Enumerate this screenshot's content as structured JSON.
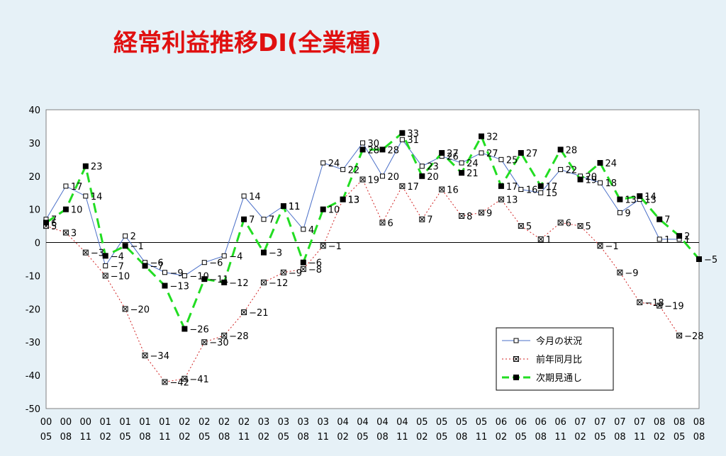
{
  "chart_data": {
    "type": "line",
    "title": "経常利益推移DI(全業種)",
    "ylim": [
      -50,
      40
    ],
    "yticks": [
      40,
      30,
      20,
      10,
      0,
      -10,
      -20,
      -30,
      -40,
      -50
    ],
    "grid": false,
    "legend_position": "bottom-right",
    "categories": [
      [
        "00",
        "05"
      ],
      [
        "00",
        "08"
      ],
      [
        "00",
        "11"
      ],
      [
        "01",
        "02"
      ],
      [
        "01",
        "05"
      ],
      [
        "01",
        "08"
      ],
      [
        "01",
        "11"
      ],
      [
        "02",
        "02"
      ],
      [
        "02",
        "05"
      ],
      [
        "02",
        "08"
      ],
      [
        "02",
        "11"
      ],
      [
        "03",
        "02"
      ],
      [
        "03",
        "05"
      ],
      [
        "03",
        "08"
      ],
      [
        "03",
        "11"
      ],
      [
        "04",
        "02"
      ],
      [
        "04",
        "05"
      ],
      [
        "04",
        "08"
      ],
      [
        "04",
        "11"
      ],
      [
        "05",
        "02"
      ],
      [
        "05",
        "05"
      ],
      [
        "05",
        "08"
      ],
      [
        "05",
        "11"
      ],
      [
        "06",
        "02"
      ],
      [
        "06",
        "05"
      ],
      [
        "06",
        "08"
      ],
      [
        "06",
        "11"
      ],
      [
        "07",
        "02"
      ],
      [
        "07",
        "05"
      ],
      [
        "07",
        "08"
      ],
      [
        "07",
        "11"
      ],
      [
        "08",
        "02"
      ],
      [
        "08",
        "05"
      ],
      [
        "08",
        "08"
      ]
    ],
    "series": [
      {
        "name": "今月の状況",
        "color": "#4a6fc8",
        "values": [
          7,
          17,
          14,
          -7,
          2,
          -6,
          -9,
          -10,
          -6,
          -4,
          14,
          7,
          11,
          4,
          24,
          22,
          30,
          20,
          31,
          23,
          26,
          24,
          27,
          25,
          16,
          15,
          22,
          20,
          18,
          9,
          13,
          1,
          1,
          null
        ]
      },
      {
        "name": "前年同月比",
        "color": "#d02020",
        "values": [
          5,
          3,
          -3,
          -10,
          -20,
          -34,
          -42,
          -41,
          -30,
          -28,
          -21,
          -12,
          -9,
          -8,
          -1,
          13,
          19,
          6,
          17,
          7,
          16,
          8,
          9,
          13,
          5,
          1,
          6,
          5,
          -1,
          -9,
          -18,
          -19,
          -28,
          null
        ]
      },
      {
        "name": "次期見通し",
        "color": "#22dd22",
        "values": [
          6,
          10,
          23,
          -4,
          -1,
          -7,
          -13,
          -26,
          -11,
          -12,
          7,
          -3,
          11,
          -6,
          10,
          13,
          28,
          28,
          33,
          20,
          27,
          21,
          32,
          17,
          27,
          17,
          28,
          19,
          24,
          13,
          14,
          7,
          2,
          -5
        ]
      }
    ]
  }
}
